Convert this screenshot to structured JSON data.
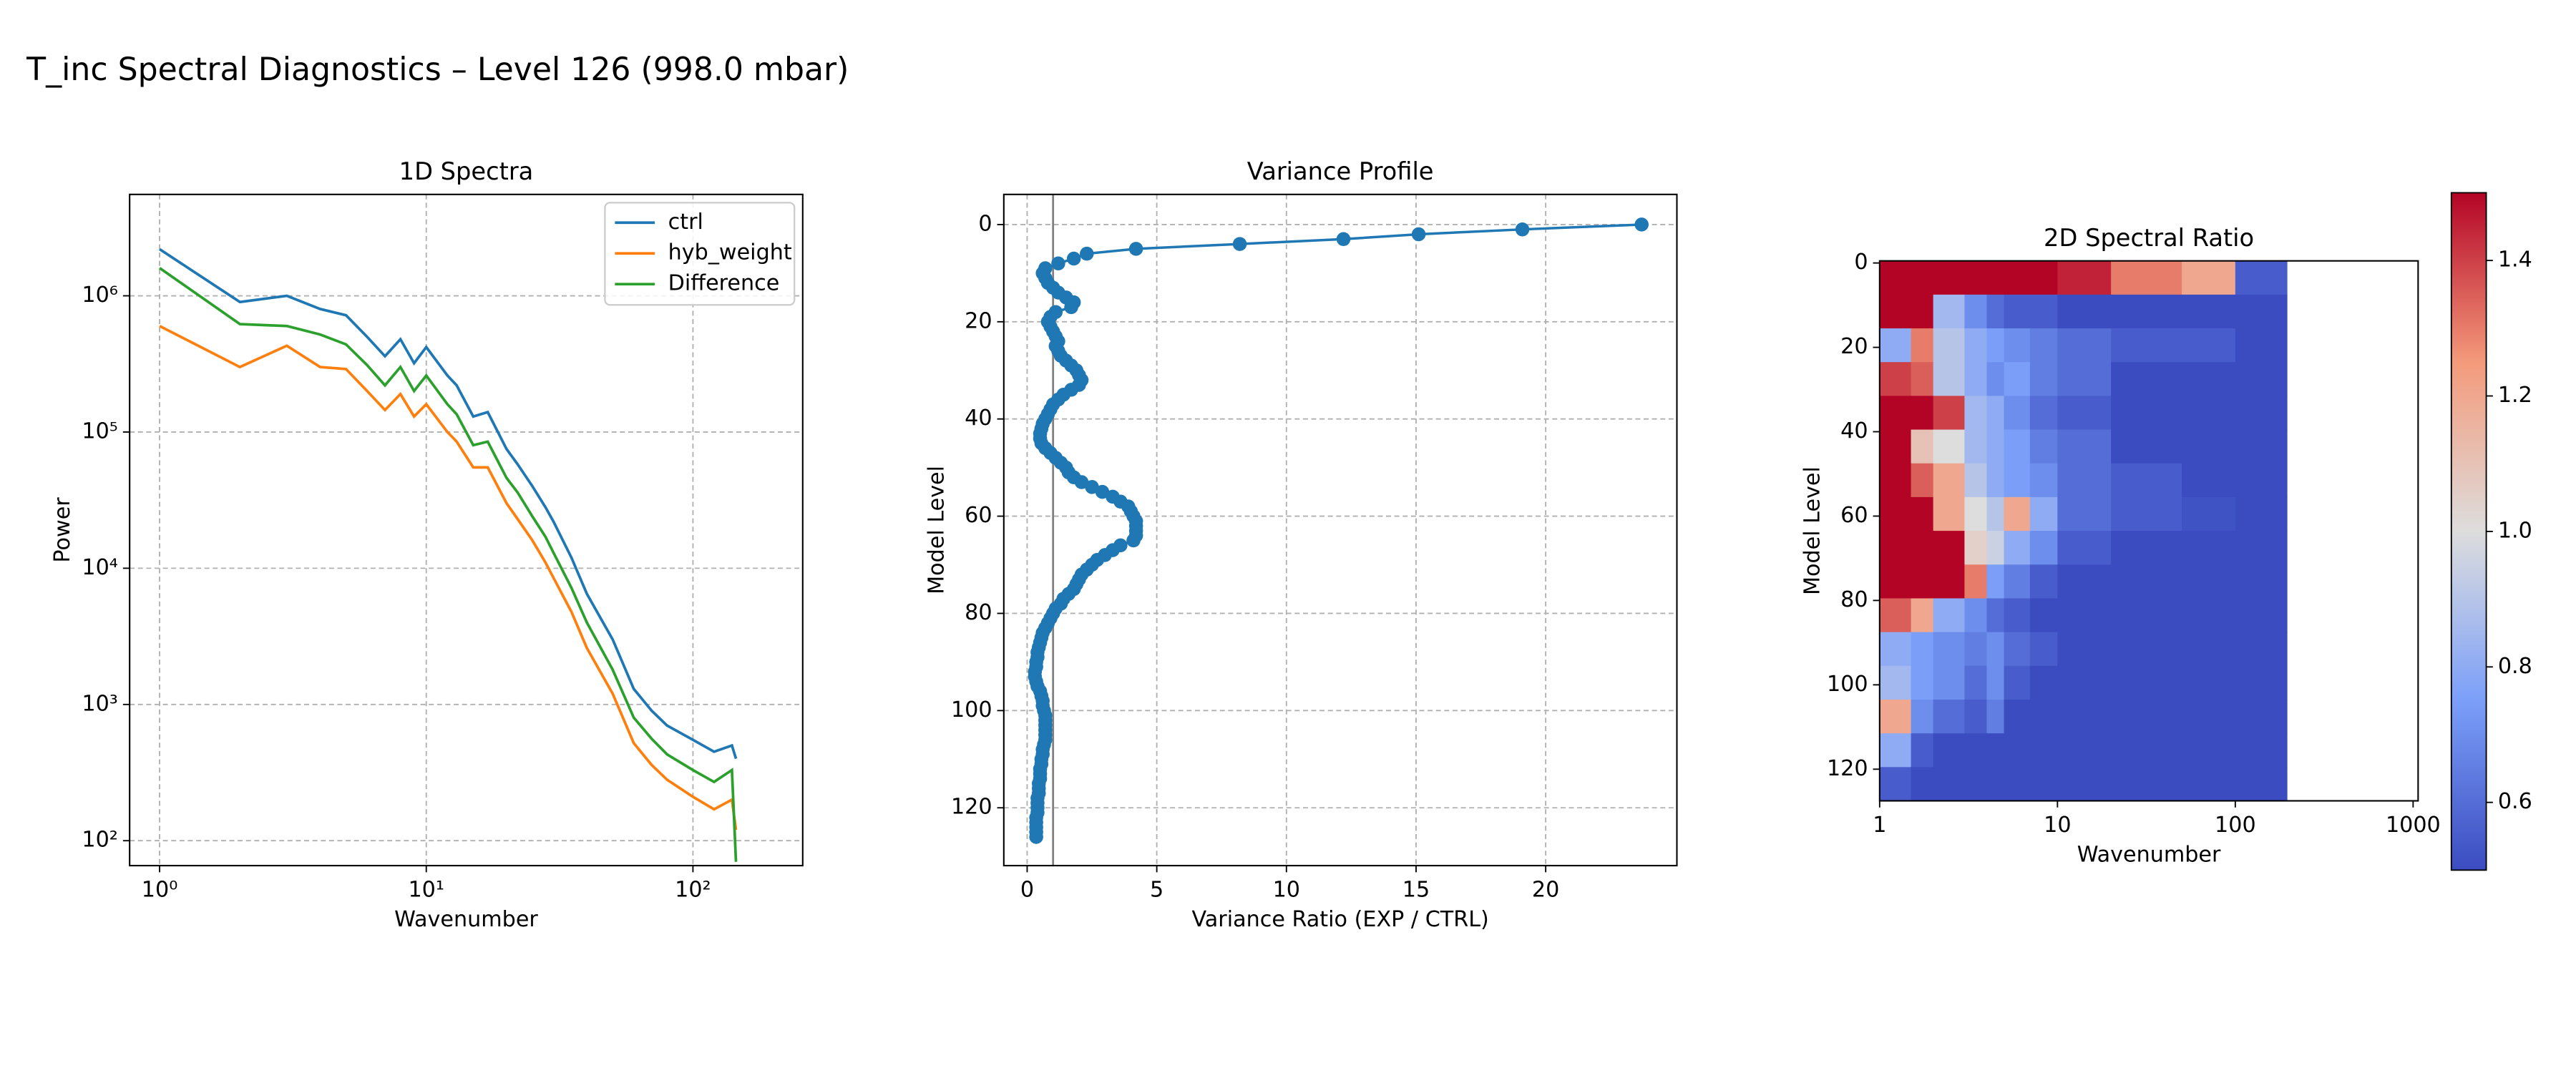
{
  "title": "T_inc Spectral Diagnostics – Level 126 (998.0 mbar)",
  "chart_data": [
    {
      "type": "line",
      "title": "1D Spectra",
      "xlabel": "Wavenumber",
      "ylabel": "Power",
      "xscale": "log",
      "yscale": "log",
      "grid": true,
      "legend": "upper right",
      "xlim": [
        0.772,
        258
      ],
      "ylim": [
        65.6,
        5550000
      ],
      "xticks": [
        {
          "value": 1,
          "label": "10⁰"
        },
        {
          "value": 10,
          "label": "10¹"
        },
        {
          "value": 100,
          "label": "10²"
        }
      ],
      "yticks": [
        {
          "value": 100,
          "label": "10²"
        },
        {
          "value": 1000,
          "label": "10³"
        },
        {
          "value": 10000,
          "label": "10⁴"
        },
        {
          "value": 100000,
          "label": "10⁵"
        },
        {
          "value": 1000000,
          "label": "10⁶"
        }
      ],
      "x": [
        1,
        2,
        3,
        4,
        5,
        6,
        7,
        8,
        9,
        10,
        12,
        13,
        15,
        17,
        20,
        22,
        25,
        28,
        30,
        35,
        40,
        50,
        60,
        70,
        80,
        100,
        120,
        140,
        145
      ],
      "series": [
        {
          "name": "ctrl",
          "color": "#1f77b4",
          "values": [
            2200000,
            900000,
            1000000,
            800000,
            720000,
            500000,
            360000,
            480000,
            320000,
            420000,
            260000,
            220000,
            130000,
            140000,
            75000,
            58000,
            40000,
            28000,
            22000,
            12000,
            6500,
            3000,
            1300,
            900,
            700,
            550,
            450,
            500,
            400
          ]
        },
        {
          "name": "hyb_weight",
          "color": "#ff7f0e",
          "values": [
            600000,
            300000,
            430000,
            300000,
            290000,
            200000,
            145000,
            190000,
            130000,
            160000,
            100000,
            85000,
            55000,
            55000,
            30000,
            23000,
            16000,
            11000,
            8500,
            4800,
            2600,
            1200,
            520,
            360,
            280,
            210,
            170,
            200,
            120
          ]
        },
        {
          "name": "Difference",
          "color": "#2ca02c",
          "values": [
            1600000,
            620000,
            600000,
            520000,
            440000,
            310000,
            220000,
            300000,
            200000,
            260000,
            160000,
            135000,
            80000,
            85000,
            46000,
            36000,
            24000,
            17000,
            13000,
            7200,
            4000,
            1800,
            800,
            560,
            430,
            330,
            270,
            330,
            70
          ]
        }
      ]
    },
    {
      "type": "scatter",
      "title": "Variance Profile",
      "xlabel": "Variance Ratio (EXP / CTRL)",
      "ylabel": "Model Level",
      "grid": true,
      "color": "#1f77b4",
      "connect": true,
      "y_inverted": true,
      "vline": 1,
      "vline_color": "#808080",
      "xlim": [
        -0.9,
        25.06
      ],
      "ylim": [
        -6.2,
        131.9
      ],
      "xticks": [
        0,
        5,
        10,
        15,
        20
      ],
      "yticks": [
        0,
        20,
        40,
        60,
        80,
        100,
        120
      ],
      "x": [
        23.7,
        19.1,
        15.1,
        12.2,
        8.2,
        4.2,
        2.3,
        1.8,
        1.2,
        0.7,
        0.6,
        0.7,
        0.8,
        1.0,
        1.2,
        1.5,
        1.8,
        1.7,
        1.1,
        0.9,
        0.8,
        0.9,
        1.0,
        1.1,
        1.2,
        1.1,
        1.2,
        1.3,
        1.5,
        1.7,
        1.9,
        2.0,
        2.1,
        2.0,
        1.7,
        1.4,
        1.2,
        1.0,
        0.9,
        0.8,
        0.7,
        0.6,
        0.55,
        0.5,
        0.5,
        0.55,
        0.7,
        0.9,
        1.1,
        1.3,
        1.5,
        1.6,
        1.8,
        2.1,
        2.5,
        2.9,
        3.3,
        3.6,
        3.9,
        4.0,
        4.1,
        4.2,
        4.2,
        4.2,
        4.2,
        4.1,
        3.6,
        3.3,
        3.0,
        2.7,
        2.5,
        2.3,
        2.1,
        2.0,
        1.9,
        1.8,
        1.6,
        1.4,
        1.3,
        1.1,
        1.0,
        0.9,
        0.8,
        0.7,
        0.6,
        0.55,
        0.5,
        0.45,
        0.4,
        0.4,
        0.35,
        0.35,
        0.3,
        0.3,
        0.35,
        0.4,
        0.5,
        0.55,
        0.6,
        0.6,
        0.65,
        0.7,
        0.7,
        0.7,
        0.7,
        0.7,
        0.7,
        0.65,
        0.6,
        0.6,
        0.55,
        0.55,
        0.5,
        0.5,
        0.5,
        0.45,
        0.45,
        0.45,
        0.4,
        0.4,
        0.4,
        0.4,
        0.35,
        0.35,
        0.35,
        0.35,
        0.35
      ],
      "y": [
        0,
        1,
        2,
        3,
        4,
        5,
        6,
        7,
        8,
        9,
        10,
        11,
        12,
        13,
        14,
        15,
        16,
        17,
        18,
        19,
        20,
        21,
        22,
        23,
        24,
        25,
        26,
        27,
        28,
        29,
        30,
        31,
        32,
        33,
        34,
        35,
        36,
        37,
        38,
        39,
        40,
        41,
        42,
        43,
        44,
        45,
        46,
        47,
        48,
        49,
        50,
        51,
        52,
        53,
        54,
        55,
        56,
        57,
        58,
        59,
        60,
        61,
        62,
        63,
        64,
        65,
        66,
        67,
        68,
        69,
        70,
        71,
        72,
        73,
        74,
        75,
        76,
        77,
        78,
        79,
        80,
        81,
        82,
        83,
        84,
        85,
        86,
        87,
        88,
        89,
        90,
        91,
        92,
        93,
        94,
        95,
        96,
        97,
        98,
        99,
        100,
        101,
        102,
        103,
        104,
        105,
        106,
        107,
        108,
        109,
        110,
        111,
        112,
        113,
        114,
        115,
        116,
        117,
        118,
        119,
        120,
        121,
        122,
        123,
        124,
        125,
        126
      ]
    },
    {
      "type": "heatmap",
      "title": "2D Spectral Ratio",
      "xlabel": "Wavenumber",
      "ylabel": "Model Level",
      "xscale": "log",
      "y_inverted": true,
      "colormap": "coolwarm",
      "clim": [
        0.5,
        1.5
      ],
      "xlim": [
        1,
        1067
      ],
      "ylim": [
        -0.5,
        127.5
      ],
      "xticks": [
        1,
        10,
        100,
        1000
      ],
      "yticks": [
        0,
        20,
        40,
        60,
        80,
        100,
        120
      ],
      "cbar_ticks": [
        0.6,
        0.8,
        {
          "value": 1,
          "label": "1.0"
        },
        1.2,
        1.4
      ],
      "x_edges": [
        1,
        1.5,
        2,
        3,
        4,
        5,
        7,
        10,
        20,
        50,
        100,
        195
      ],
      "y_edges": [
        -0.5,
        7.5,
        15.5,
        23.5,
        31.5,
        39.5,
        47.5,
        55.5,
        63.5,
        71.5,
        79.5,
        87.5,
        95.5,
        103.5,
        111.5,
        119.5,
        127.5
      ],
      "values": [
        [
          1.5,
          1.5,
          1.5,
          1.5,
          1.5,
          1.5,
          1.5,
          1.45,
          1.3,
          1.2,
          0.55
        ],
        [
          1.5,
          1.5,
          0.85,
          0.7,
          0.6,
          0.55,
          0.55,
          0.5,
          0.5,
          0.5,
          0.5
        ],
        [
          0.8,
          1.3,
          0.9,
          0.8,
          0.75,
          0.7,
          0.65,
          0.6,
          0.55,
          0.55,
          0.5
        ],
        [
          1.4,
          1.35,
          0.9,
          0.8,
          0.7,
          0.75,
          0.65,
          0.6,
          0.5,
          0.5,
          0.5
        ],
        [
          1.5,
          1.5,
          1.4,
          0.85,
          0.8,
          0.7,
          0.6,
          0.55,
          0.5,
          0.5,
          0.5
        ],
        [
          1.5,
          1.1,
          1.0,
          0.85,
          0.8,
          0.75,
          0.65,
          0.6,
          0.5,
          0.5,
          0.5
        ],
        [
          1.5,
          1.35,
          1.2,
          0.9,
          0.8,
          0.75,
          0.7,
          0.6,
          0.55,
          0.5,
          0.5
        ],
        [
          1.5,
          1.5,
          1.2,
          1.0,
          0.9,
          1.2,
          0.8,
          0.6,
          0.55,
          0.52,
          0.5
        ],
        [
          1.5,
          1.5,
          1.5,
          1.05,
          0.95,
          0.8,
          0.7,
          0.55,
          0.5,
          0.5,
          0.5
        ],
        [
          1.5,
          1.5,
          1.5,
          1.3,
          0.75,
          0.65,
          0.55,
          0.5,
          0.5,
          0.5,
          0.5
        ],
        [
          1.35,
          1.2,
          0.8,
          0.7,
          0.6,
          0.55,
          0.5,
          0.5,
          0.5,
          0.5,
          0.5
        ],
        [
          0.8,
          0.75,
          0.7,
          0.65,
          0.7,
          0.6,
          0.55,
          0.5,
          0.5,
          0.5,
          0.5
        ],
        [
          0.85,
          0.75,
          0.7,
          0.6,
          0.7,
          0.55,
          0.5,
          0.5,
          0.5,
          0.5,
          0.5
        ],
        [
          1.2,
          0.7,
          0.6,
          0.55,
          0.65,
          0.5,
          0.5,
          0.5,
          0.5,
          0.5,
          0.5
        ],
        [
          0.8,
          0.55,
          0.5,
          0.5,
          0.5,
          0.5,
          0.5,
          0.5,
          0.5,
          0.5,
          0.5
        ],
        [
          0.55,
          0.5,
          0.5,
          0.5,
          0.5,
          0.5,
          0.5,
          0.5,
          0.5,
          0.5,
          0.5
        ]
      ]
    }
  ]
}
